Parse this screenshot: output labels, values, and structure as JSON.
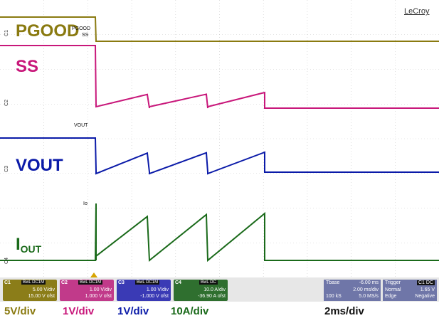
{
  "brand": "LeCroy",
  "channels": {
    "pgood": {
      "label": "PGOOD",
      "color": "#8a7a10"
    },
    "ss": {
      "label": "SS",
      "color": "#c8177a"
    },
    "vout": {
      "label": "VOUT",
      "color": "#0a1aa8"
    },
    "iout": {
      "label": "I",
      "sub": "OUT",
      "color": "#1a6a1a"
    }
  },
  "annotations": {
    "pgood_small": "PGOOD",
    "ss_small": "SS",
    "vout_small": "VOUT",
    "io_small": "Io"
  },
  "side_tags": [
    "C1",
    "C2",
    "C3",
    "C4"
  ],
  "boxes": {
    "c1": {
      "tag": "C1",
      "bw": "BwL DC1M",
      "line1": "5.00 V/div",
      "line2": "15.00 V ofst"
    },
    "c2": {
      "tag": "C2",
      "bw": "BwL DC1M",
      "line1": "1.00 V/div",
      "line2": "1.000 V ofst"
    },
    "c3": {
      "tag": "C3",
      "bw": "BwL DC1M",
      "line1": "1.00 V/div",
      "line2": "-1.000 V ofst"
    },
    "c4": {
      "tag": "C4",
      "bw": "BwL DC",
      "line1": "10.0 A/div",
      "line2": "-36.90 A ofst"
    }
  },
  "timebase": {
    "label": "Tbase",
    "value": "-6.00 ms",
    "div": "2.00 ms/div",
    "samples": "100 kS",
    "rate": "5.0 MS/s"
  },
  "trigger": {
    "label": "Trigger",
    "ch": "C1 DC",
    "mode": "Normal",
    "level": "1.65 V",
    "type": "Edge",
    "slope": "Negative"
  },
  "scales": {
    "s1": "5V/div",
    "s2": "1V/div",
    "s3": "1V/div",
    "s4": "10A/div",
    "s5": "2ms/div"
  }
}
